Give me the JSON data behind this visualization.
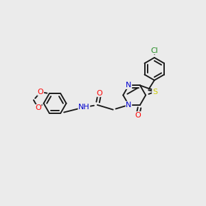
{
  "background_color": "#ebebeb",
  "bond_color": "#1a1a1a",
  "atom_colors": {
    "O": "#ff0000",
    "N": "#0000cd",
    "S": "#cccc00",
    "Cl": "#228B22",
    "C": "#1a1a1a"
  },
  "figsize": [
    3.0,
    3.0
  ],
  "dpi": 100,
  "lw": 1.4,
  "fontsize": 7.5
}
